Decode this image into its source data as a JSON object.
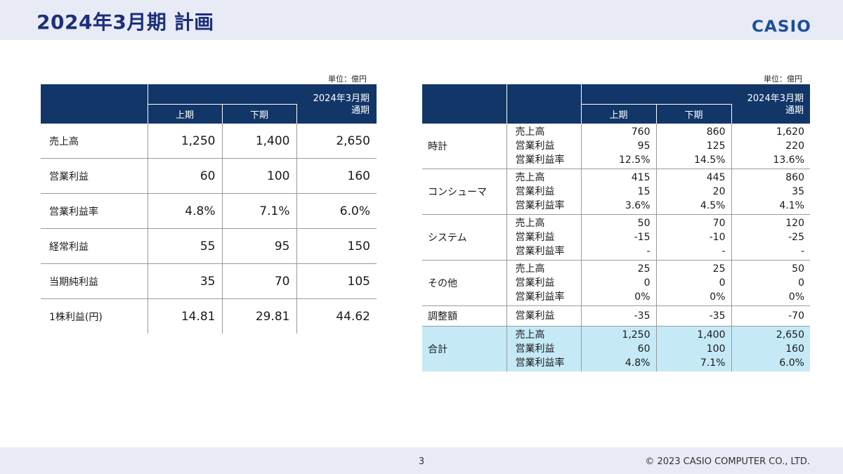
{
  "title": "2024年3月期 計画",
  "logo": "CASIO",
  "page_number": "3",
  "copyright": "© 2023 CASIO COMPUTER CO., LTD.",
  "left_table": {
    "unit": "単位：億円",
    "header_period": "2024年3月期",
    "header_h1": "上期",
    "header_h2": "下期",
    "header_full": "通期",
    "rows": [
      {
        "label": "売上高",
        "h1": "1,250",
        "h2": "1,400",
        "full": "2,650"
      },
      {
        "label": "営業利益",
        "h1": "60",
        "h2": "100",
        "full": "160"
      },
      {
        "label": "営業利益率",
        "h1": "4.8%",
        "h2": "7.1%",
        "full": "6.0%"
      },
      {
        "label": "経常利益",
        "h1": "55",
        "h2": "95",
        "full": "150"
      },
      {
        "label": "当期純利益",
        "h1": "35",
        "h2": "70",
        "full": "105"
      },
      {
        "label": "1株利益(円)",
        "h1": "14.81",
        "h2": "29.81",
        "full": "44.62"
      }
    ]
  },
  "right_table": {
    "unit": "単位：億円",
    "header_period": "2024年3月期",
    "header_h1": "上期",
    "header_h2": "下期",
    "header_full": "通期",
    "segments": [
      {
        "name": "時計",
        "rows": [
          {
            "metric": "売上高",
            "h1": "760",
            "h2": "860",
            "full": "1,620"
          },
          {
            "metric": "営業利益",
            "h1": "95",
            "h2": "125",
            "full": "220"
          },
          {
            "metric": "営業利益率",
            "h1": "12.5%",
            "h2": "14.5%",
            "full": "13.6%"
          }
        ]
      },
      {
        "name": "コンシューマ",
        "rows": [
          {
            "metric": "売上高",
            "h1": "415",
            "h2": "445",
            "full": "860"
          },
          {
            "metric": "営業利益",
            "h1": "15",
            "h2": "20",
            "full": "35"
          },
          {
            "metric": "営業利益率",
            "h1": "3.6%",
            "h2": "4.5%",
            "full": "4.1%"
          }
        ]
      },
      {
        "name": "システム",
        "rows": [
          {
            "metric": "売上高",
            "h1": "50",
            "h2": "70",
            "full": "120"
          },
          {
            "metric": "営業利益",
            "h1": "-15",
            "h2": "-10",
            "full": "-25"
          },
          {
            "metric": "営業利益率",
            "h1": "-",
            "h2": "-",
            "full": "-"
          }
        ]
      },
      {
        "name": "その他",
        "rows": [
          {
            "metric": "売上高",
            "h1": "25",
            "h2": "25",
            "full": "50"
          },
          {
            "metric": "営業利益",
            "h1": "0",
            "h2": "0",
            "full": "0"
          },
          {
            "metric": "営業利益率",
            "h1": "0%",
            "h2": "0%",
            "full": "0%"
          }
        ]
      },
      {
        "name": "調整額",
        "rows": [
          {
            "metric": "営業利益",
            "h1": "-35",
            "h2": "-35",
            "full": "-70"
          }
        ]
      },
      {
        "name": "合計",
        "highlight": true,
        "rows": [
          {
            "metric": "売上高",
            "h1": "1,250",
            "h2": "1,400",
            "full": "2,650"
          },
          {
            "metric": "営業利益",
            "h1": "60",
            "h2": "100",
            "full": "160"
          },
          {
            "metric": "営業利益率",
            "h1": "4.8%",
            "h2": "7.1%",
            "full": "6.0%"
          }
        ]
      }
    ]
  },
  "colors": {
    "header": "#123668",
    "title": "#1c2f7a",
    "band": "#e8ebf5",
    "total_bg": "#c5e9f6"
  }
}
